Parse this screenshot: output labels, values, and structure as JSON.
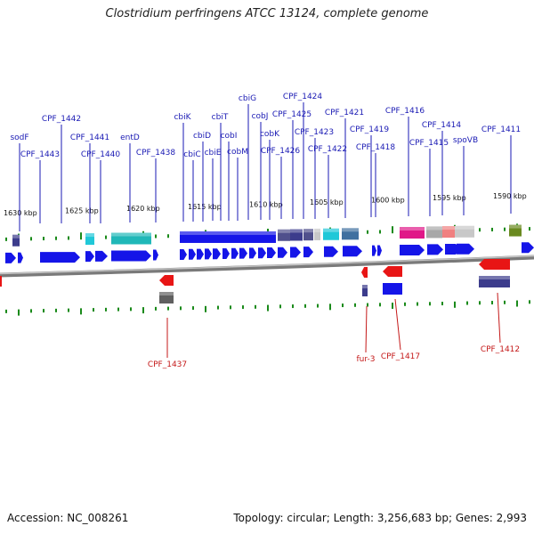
{
  "title": "Clostridium perfringens ATCC 13124, complete genome",
  "footer": {
    "accession": "Accession: NC_008261",
    "summary": "Topology: circular; Length: 3,256,683 bp; Genes: 2,993"
  },
  "colors": {
    "forward_gene": "#1515e8",
    "reverse_gene": "#e81515",
    "backbone": "#9a9a9a",
    "tick": "#1a8a1a",
    "forward_label": "#1a1ab4",
    "reverse_label": "#c41818",
    "cog_slate": "#3c3c8c",
    "cog_purple": "#50508c",
    "cog_cyan": "#20c8d8",
    "cog_teal": "#20b8b8",
    "cog_steel": "#4070a0",
    "cog_grey": "#a8a8a8",
    "cog_lightgrey": "#c8c8c8",
    "cog_magenta": "#e01888",
    "cog_pink": "#f08080",
    "cog_olive": "#6a8a20",
    "cog_darkgrey": "#606060"
  },
  "scale_labels": [
    "1630 kbp",
    "1625 kbp",
    "1620 kbp",
    "1615 kbp",
    "1610 kbp",
    "1605 kbp",
    "1600 kbp",
    "1595 kbp",
    "1590 kbp"
  ],
  "forward_labels": [
    "sodF",
    "CPF_1443",
    "CPF_1442",
    "CPF_1441",
    "CPF_1440",
    "entD",
    "CPF_1438",
    "cbiK",
    "cbiC",
    "cbiD",
    "cbiE",
    "cbiT",
    "cobI",
    "cobM",
    "cbiG",
    "cobJ",
    "cobK",
    "CPF_1426",
    "CPF_1425",
    "CPF_1424",
    "CPF_1423",
    "CPF_1422",
    "CPF_1421",
    "CPF_1419",
    "CPF_1418",
    "CPF_1416",
    "CPF_1415",
    "CPF_1414",
    "spoVB",
    "CPF_1411"
  ],
  "reverse_labels": [
    "CPF_1437",
    "fur-3",
    "CPF_1417",
    "CPF_1412"
  ]
}
